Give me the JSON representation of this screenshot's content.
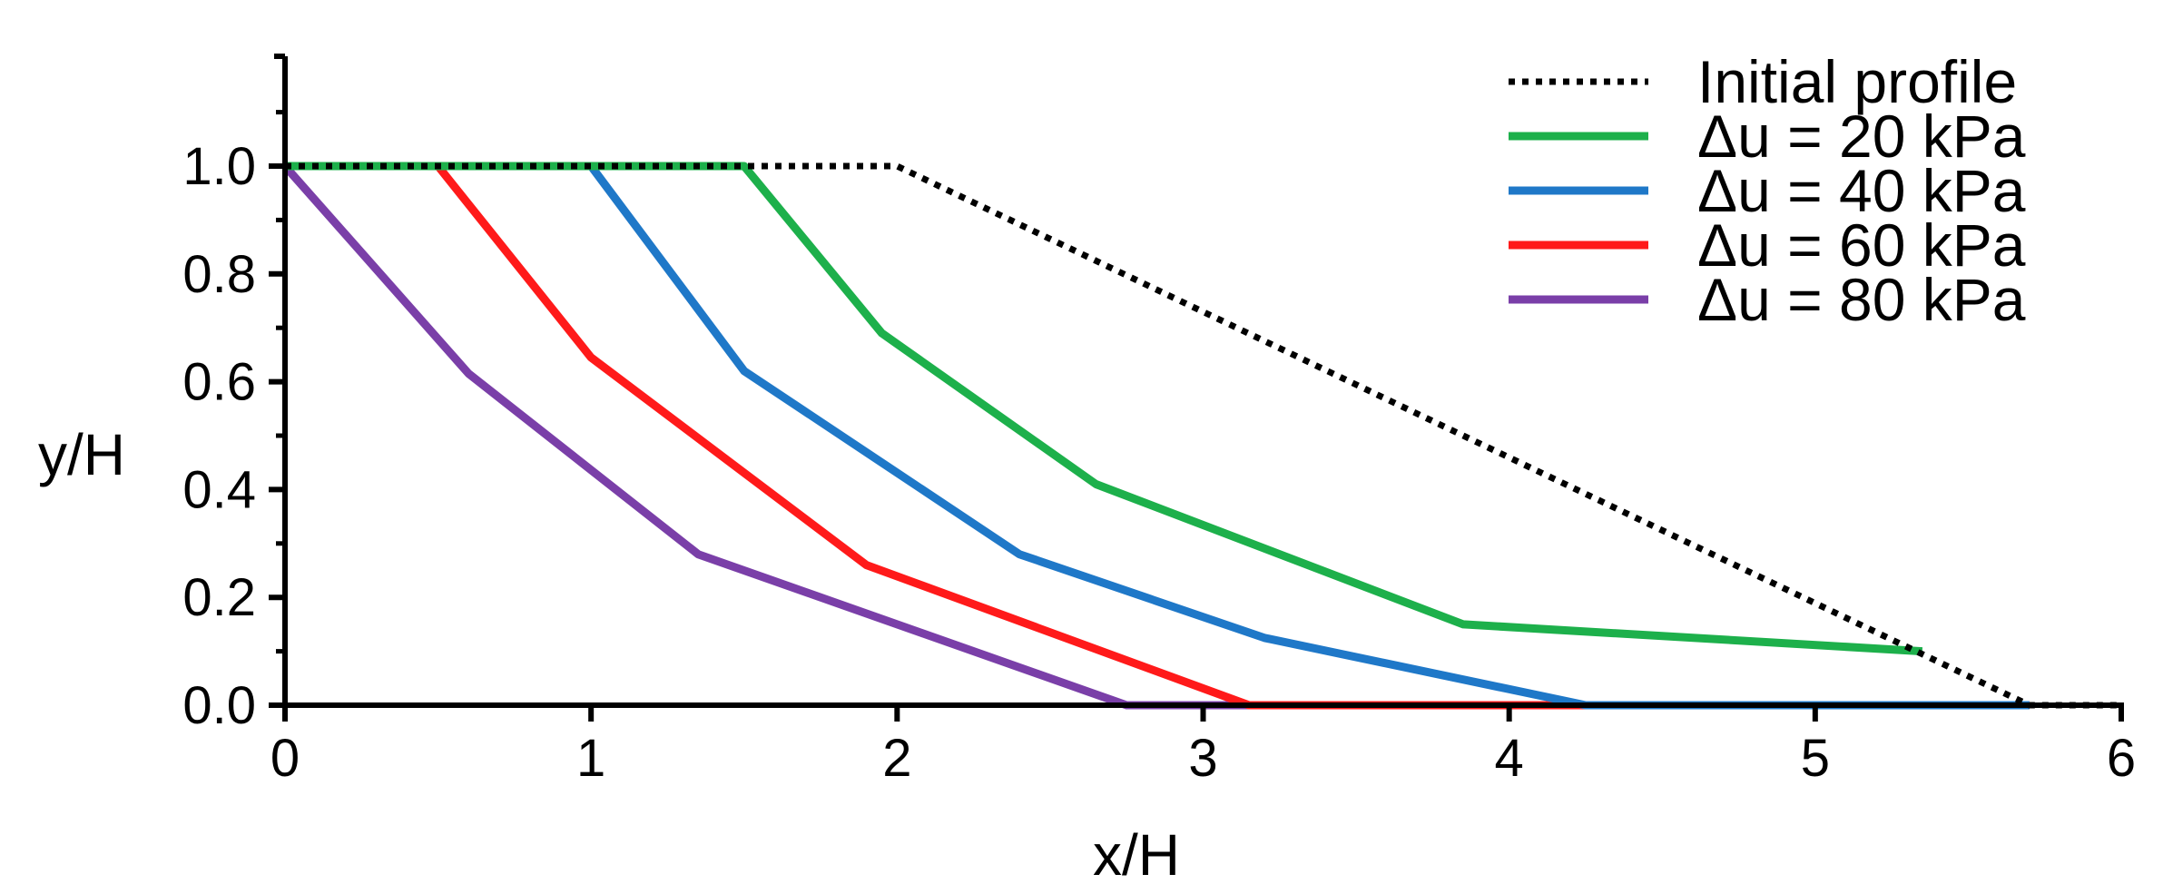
{
  "chart_data": {
    "type": "line",
    "xlabel": "x/H",
    "ylabel": "y/H",
    "xlim": [
      0,
      6
    ],
    "ylim": [
      0,
      1.2
    ],
    "x_ticks": [
      "0",
      "1",
      "2",
      "3",
      "4",
      "5",
      "6"
    ],
    "y_ticks": [
      "0.0",
      "0.2",
      "0.4",
      "0.6",
      "0.8",
      "1.0"
    ],
    "grid": false,
    "legend_position": "top-right",
    "series": [
      {
        "name": "Initial profile",
        "color": "#000000",
        "style": "dotted",
        "points": [
          [
            0,
            1.0
          ],
          [
            2.0,
            1.0
          ],
          [
            5.7,
            0.0
          ],
          [
            6.0,
            0.0
          ]
        ]
      },
      {
        "name": "Δu = 20 kPa",
        "color": "#1db04b",
        "style": "solid",
        "points": [
          [
            0,
            1.0
          ],
          [
            1.5,
            1.0
          ],
          [
            1.95,
            0.69
          ],
          [
            2.65,
            0.41
          ],
          [
            3.85,
            0.15
          ],
          [
            5.35,
            0.1
          ]
        ]
      },
      {
        "name": "Δu = 40 kPa",
        "color": "#1f78c8",
        "style": "solid",
        "points": [
          [
            0,
            1.0
          ],
          [
            1.0,
            1.0
          ],
          [
            1.5,
            0.62
          ],
          [
            2.4,
            0.28
          ],
          [
            3.2,
            0.125
          ],
          [
            4.25,
            0.0
          ],
          [
            5.7,
            0.0
          ]
        ]
      },
      {
        "name": "Δu = 60 kPa",
        "color": "#ff1a1a",
        "style": "solid",
        "points": [
          [
            0,
            1.0
          ],
          [
            0.5,
            1.0
          ],
          [
            1.0,
            0.645
          ],
          [
            1.9,
            0.26
          ],
          [
            3.15,
            0.0
          ],
          [
            5.7,
            0.0
          ]
        ]
      },
      {
        "name": "Δu = 80 kPa",
        "color": "#7a3fa8",
        "style": "solid",
        "points": [
          [
            0,
            1.0
          ],
          [
            0.6,
            0.615
          ],
          [
            1.35,
            0.28
          ],
          [
            2.75,
            0.0
          ],
          [
            5.7,
            0.0
          ]
        ]
      }
    ]
  }
}
